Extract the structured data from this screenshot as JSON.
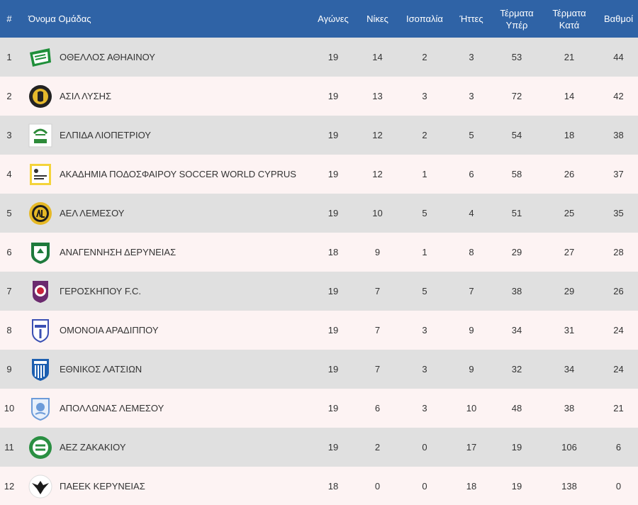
{
  "header": {
    "rank": "#",
    "team": "Όνομα Ομάδας",
    "played": "Αγώνες",
    "wins": "Νίκες",
    "draws": "Ισοπαλία",
    "losses": "Ήττες",
    "goals_for_line1": "Τέρματα",
    "goals_for_line2": "Υπέρ",
    "goals_against_line1": "Τέρματα",
    "goals_against_line2": "Κατά",
    "points": "Βαθμοί"
  },
  "colors": {
    "header_bg": "#2f63a6",
    "row_odd": "#e0e0e0",
    "row_even": "#fdf3f3"
  },
  "rows": [
    {
      "rank": "1",
      "team": "ΟΘΕΛΛΟΣ ΑΘΗΑΙΝΟΥ",
      "played": "19",
      "wins": "14",
      "draws": "2",
      "losses": "3",
      "gf": "53",
      "ga": "21",
      "pts": "44",
      "crest": "othellos-crest-icon"
    },
    {
      "rank": "2",
      "team": "ΑΣΙΛ ΛΥΣΗΣ",
      "played": "19",
      "wins": "13",
      "draws": "3",
      "losses": "3",
      "gf": "72",
      "ga": "14",
      "pts": "42",
      "crest": "asil-crest-icon"
    },
    {
      "rank": "3",
      "team": "ΕΛΠΙΔΑ ΛΙΟΠΕΤΡΙΟΥ",
      "played": "19",
      "wins": "12",
      "draws": "2",
      "losses": "5",
      "gf": "54",
      "ga": "18",
      "pts": "38",
      "crest": "elpida-crest-icon"
    },
    {
      "rank": "4",
      "team": "ΑΚΑΔΗΜΙΑ ΠΟΔΟΣΦΑΙΡΟΥ SOCCER WORLD CYPRUS",
      "played": "19",
      "wins": "12",
      "draws": "1",
      "losses": "6",
      "gf": "58",
      "ga": "26",
      "pts": "37",
      "crest": "soccer-world-crest-icon"
    },
    {
      "rank": "5",
      "team": "ΑΕΛ ΛΕΜΕΣΟΥ",
      "played": "19",
      "wins": "10",
      "draws": "5",
      "losses": "4",
      "gf": "51",
      "ga": "25",
      "pts": "35",
      "crest": "ael-crest-icon"
    },
    {
      "rank": "6",
      "team": "ΑΝΑΓΕΝΝΗΣΗ ΔΕΡΥΝΕΙΑΣ",
      "played": "18",
      "wins": "9",
      "draws": "1",
      "losses": "8",
      "gf": "29",
      "ga": "27",
      "pts": "28",
      "crest": "anagennisi-crest-icon"
    },
    {
      "rank": "7",
      "team": "ΓΕΡΟΣΚΗΠΟΥ F.C.",
      "played": "19",
      "wins": "7",
      "draws": "5",
      "losses": "7",
      "gf": "38",
      "ga": "29",
      "pts": "26",
      "crest": "geroskipou-crest-icon"
    },
    {
      "rank": "8",
      "team": "ΟΜΟΝΟΙΑ ΑΡΑΔΙΠΠΟΥ",
      "played": "19",
      "wins": "7",
      "draws": "3",
      "losses": "9",
      "gf": "34",
      "ga": "31",
      "pts": "24",
      "crest": "omonia-aradippou-crest-icon"
    },
    {
      "rank": "9",
      "team": "ΕΘΝΙΚΟΣ ΛΑΤΣΙΩΝ",
      "played": "19",
      "wins": "7",
      "draws": "3",
      "losses": "9",
      "gf": "32",
      "ga": "34",
      "pts": "24",
      "crest": "ethnikos-latsion-crest-icon"
    },
    {
      "rank": "10",
      "team": "ΑΠΟΛΛΩΝΑΣ ΛΕΜΕΣΟΥ",
      "played": "19",
      "wins": "6",
      "draws": "3",
      "losses": "10",
      "gf": "48",
      "ga": "38",
      "pts": "21",
      "crest": "apollon-crest-icon"
    },
    {
      "rank": "11",
      "team": "ΑΕΖ ΖΑΚΑΚΙΟΥ",
      "played": "19",
      "wins": "2",
      "draws": "0",
      "losses": "17",
      "gf": "19",
      "ga": "106",
      "pts": "6",
      "crest": "aez-crest-icon"
    },
    {
      "rank": "12",
      "team": "ΠΑΕΕΚ ΚΕΡΥΝΕΙΑΣ",
      "played": "18",
      "wins": "0",
      "draws": "0",
      "losses": "18",
      "gf": "19",
      "ga": "138",
      "pts": "0",
      "crest": "paeek-crest-icon"
    }
  ]
}
